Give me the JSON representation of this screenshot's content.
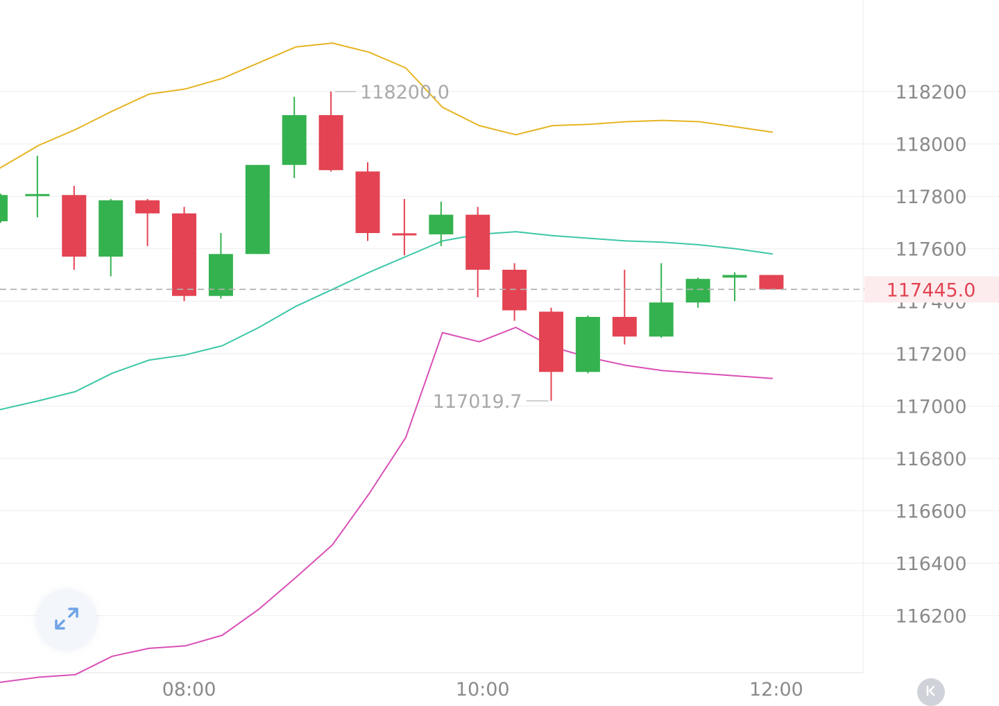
{
  "chart_data": {
    "type": "candlestick",
    "y_axis": {
      "ticks": [
        "118200",
        "118000",
        "117800",
        "117600",
        "117400",
        "117200",
        "117000",
        "116800",
        "116600",
        "116400",
        "116200"
      ],
      "range": [
        115900,
        118400
      ],
      "side": "right"
    },
    "x_axis": {
      "ticks": [
        {
          "label": "08:00",
          "candle_index": 5
        },
        {
          "label": "10:00",
          "candle_index": 13
        },
        {
          "label": "12:00",
          "candle_index": 21
        }
      ]
    },
    "candles": [
      {
        "open": 117705,
        "close": 117805,
        "high": 117810,
        "low": 117700
      },
      {
        "open": 117800,
        "close": 117805,
        "high": 117955,
        "low": 117720
      },
      {
        "open": 117805,
        "close": 117570,
        "high": 117840,
        "low": 117520
      },
      {
        "open": 117570,
        "close": 117785,
        "high": 117790,
        "low": 117495
      },
      {
        "open": 117785,
        "close": 117735,
        "high": 117790,
        "low": 117610
      },
      {
        "open": 117735,
        "close": 117420,
        "high": 117760,
        "low": 117400
      },
      {
        "open": 117420,
        "close": 117580,
        "high": 117660,
        "low": 117410
      },
      {
        "open": 117580,
        "close": 117920,
        "high": 117920,
        "low": 117580
      },
      {
        "open": 117920,
        "close": 118110,
        "high": 118180,
        "low": 117870
      },
      {
        "open": 118110,
        "close": 117900,
        "high": 118200,
        "low": 117895
      },
      {
        "open": 117895,
        "close": 117660,
        "high": 117930,
        "low": 117630
      },
      {
        "open": 117655,
        "close": 117650,
        "high": 117790,
        "low": 117575
      },
      {
        "open": 117655,
        "close": 117730,
        "high": 117780,
        "low": 117610
      },
      {
        "open": 117730,
        "close": 117520,
        "high": 117760,
        "low": 117415
      },
      {
        "open": 117520,
        "close": 117365,
        "high": 117545,
        "low": 117325
      },
      {
        "open": 117360,
        "close": 117130,
        "high": 117375,
        "low": 117020
      },
      {
        "open": 117130,
        "close": 117340,
        "high": 117345,
        "low": 117125
      },
      {
        "open": 117340,
        "close": 117265,
        "high": 117520,
        "low": 117235
      },
      {
        "open": 117265,
        "close": 117395,
        "high": 117545,
        "low": 117260
      },
      {
        "open": 117395,
        "close": 117485,
        "high": 117490,
        "low": 117375
      },
      {
        "open": 117490,
        "close": 117500,
        "high": 117510,
        "low": 117400
      },
      {
        "open": 117500,
        "close": 117445,
        "high": 117500,
        "low": 117445
      }
    ],
    "bollinger": {
      "upper": [
        117905,
        117995,
        118055,
        118125,
        118190,
        118210,
        118250,
        118310,
        118370,
        118385,
        118350,
        118290,
        118140,
        118070,
        118035,
        118070,
        118075,
        118085,
        118090,
        118085,
        118065,
        118045
      ],
      "middle": [
        116985,
        117020,
        117055,
        117125,
        117175,
        117195,
        117230,
        117300,
        117380,
        117445,
        117510,
        117570,
        117630,
        117655,
        117665,
        117650,
        117640,
        117630,
        117625,
        117615,
        117600,
        117580
      ],
      "lower": [
        115945,
        115965,
        115975,
        116045,
        116075,
        116085,
        116125,
        116225,
        116345,
        116470,
        116665,
        116880,
        117280,
        117245,
        117300,
        117225,
        117185,
        117155,
        117135,
        117125,
        117115,
        117105
      ]
    },
    "annotations": [
      {
        "label": "118200.0",
        "value": 118200,
        "candle_index": 9,
        "side": "right"
      },
      {
        "label": "117019.7",
        "value": 117019.7,
        "candle_index": 15,
        "side": "left"
      }
    ],
    "last_price": {
      "label": "117445.0",
      "value": 117445
    },
    "colors": {
      "up": "#34b24f",
      "down": "#e34352",
      "upper_band": "#e6b422",
      "middle_band": "#3cc6a8",
      "lower_band": "#d94fb6",
      "grid": "#efefef",
      "axis_text": "#8a8a8a",
      "last_price_text": "#e34352",
      "last_price_bg": "#fdecee",
      "last_price_line": "#b0b0b0"
    },
    "grid": true
  },
  "controls": {
    "expand_icon": "expand-diagonal-icon",
    "scroll_end_icon": "scroll-to-latest-icon"
  }
}
